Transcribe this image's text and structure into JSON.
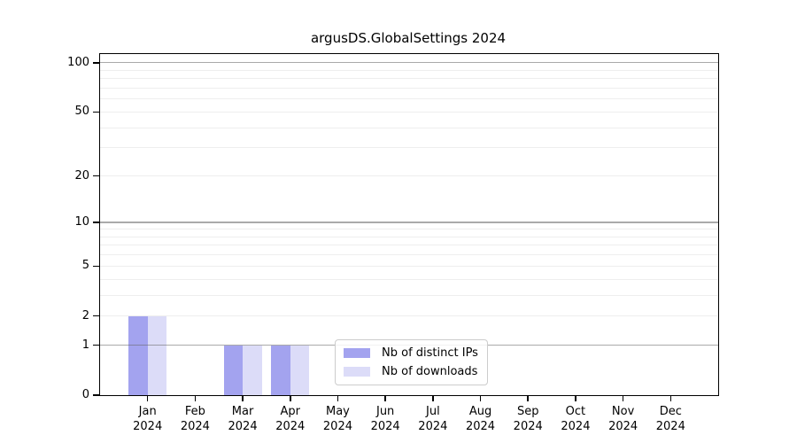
{
  "chart_data": {
    "type": "bar",
    "title": "argusDS.GlobalSettings 2024",
    "categories": [
      "Jan",
      "Feb",
      "Mar",
      "Apr",
      "May",
      "Jun",
      "Jul",
      "Aug",
      "Sep",
      "Oct",
      "Nov",
      "Dec"
    ],
    "x_tick_year": "2024",
    "series": [
      {
        "name": "Nb of distinct IPs",
        "color": "#a3a3ef",
        "values": [
          2,
          0,
          1,
          1,
          0,
          0,
          0,
          0,
          0,
          0,
          0,
          0
        ]
      },
      {
        "name": "Nb of downloads",
        "color": "#dcdcf8",
        "values": [
          2,
          0,
          1,
          1,
          0,
          0,
          0,
          0,
          0,
          0,
          0,
          0
        ]
      }
    ],
    "y_axis": {
      "scale": "log10(value+1)",
      "ticks": [
        0,
        1,
        2,
        5,
        10,
        20,
        50,
        100
      ],
      "max": 113,
      "major_gridlines": [
        1,
        10,
        100
      ],
      "minor_gridlines": [
        2,
        3,
        4,
        5,
        6,
        7,
        8,
        9,
        20,
        30,
        40,
        50,
        60,
        70,
        80,
        90
      ]
    },
    "legend": {
      "position": "lower center",
      "entries": [
        "Nb of distinct IPs",
        "Nb of downloads"
      ]
    },
    "xlabel": "",
    "ylabel": ""
  }
}
